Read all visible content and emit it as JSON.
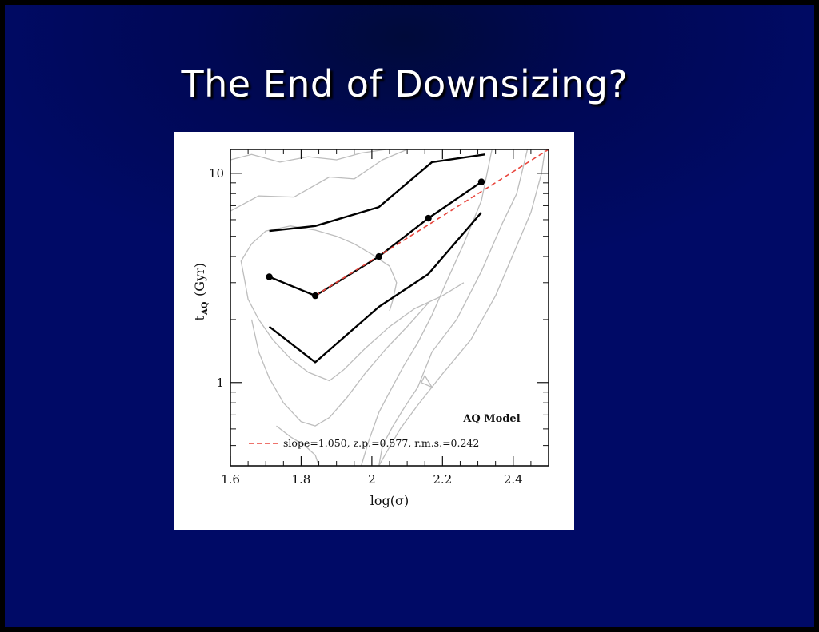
{
  "slide": {
    "title": "The End of Downsizing?"
  },
  "chart_data": {
    "type": "line",
    "x_scale": "linear",
    "y_scale": "log",
    "xlim": [
      1.6,
      2.5
    ],
    "ylim": [
      0.4,
      13
    ],
    "xlabel": "log(σ)",
    "ylabel_main": "t",
    "ylabel_sub": "AQ",
    "ylabel_unit": "(Gyr)",
    "x_ticks": [
      1.6,
      1.8,
      2,
      2.2,
      2.4
    ],
    "x_tick_labels": [
      "1.6",
      "1.8",
      "2",
      "2.2",
      "2.4"
    ],
    "y_ticks": [
      1,
      10
    ],
    "y_tick_labels": [
      "1",
      "10"
    ],
    "legend_position": "bottom-right",
    "annotation": "AQ Model",
    "fit_label": "slope=1.050, z.p.=0.577, r.m.s.=0.242",
    "colors": {
      "fit": "#e8453c",
      "contour": "#bdbdbd",
      "series": "#000000"
    },
    "series": [
      {
        "role": "median",
        "markers": true,
        "points": [
          [
            1.71,
            3.2
          ],
          [
            1.84,
            2.6
          ],
          [
            2.02,
            4.0
          ],
          [
            2.16,
            6.1
          ],
          [
            2.31,
            9.1
          ]
        ]
      },
      {
        "role": "upper",
        "markers": false,
        "points": [
          [
            1.71,
            5.3
          ],
          [
            1.84,
            5.6
          ],
          [
            2.02,
            6.9
          ],
          [
            2.17,
            11.3
          ],
          [
            2.32,
            12.3
          ]
        ]
      },
      {
        "role": "lower",
        "markers": false,
        "points": [
          [
            1.71,
            1.85
          ],
          [
            1.84,
            1.25
          ],
          [
            2.02,
            2.3
          ],
          [
            2.16,
            3.3
          ],
          [
            2.31,
            6.5
          ]
        ]
      },
      {
        "role": "fit",
        "dashed": true,
        "points": [
          [
            1.84,
            2.6
          ],
          [
            2.5,
            13.0
          ]
        ]
      }
    ],
    "contours": [
      [
        [
          1.6,
          11.6
        ],
        [
          1.66,
          12.3
        ],
        [
          1.74,
          11.3
        ],
        [
          1.82,
          12.0
        ],
        [
          1.9,
          11.6
        ],
        [
          1.97,
          12.5
        ],
        [
          2.04,
          13.0
        ]
      ],
      [
        [
          1.6,
          6.6
        ],
        [
          1.68,
          7.8
        ],
        [
          1.78,
          7.7
        ],
        [
          1.88,
          9.6
        ],
        [
          1.95,
          9.4
        ],
        [
          2.03,
          11.6
        ],
        [
          2.1,
          13.0
        ]
      ],
      [
        [
          2.44,
          13.0
        ],
        [
          2.43,
          11.0
        ],
        [
          2.41,
          8.0
        ],
        [
          2.37,
          5.8
        ],
        [
          2.31,
          3.4
        ],
        [
          2.24,
          2.0
        ],
        [
          2.17,
          1.4
        ],
        [
          2.13,
          0.95
        ],
        [
          2.09,
          0.75
        ],
        [
          2.06,
          0.62
        ],
        [
          2.03,
          0.5
        ],
        [
          2.02,
          0.4
        ]
      ],
      [
        [
          2.49,
          13.0
        ],
        [
          2.48,
          10.0
        ],
        [
          2.45,
          6.5
        ],
        [
          2.41,
          4.5
        ],
        [
          2.35,
          2.6
        ],
        [
          2.28,
          1.6
        ],
        [
          2.2,
          1.1
        ],
        [
          2.13,
          0.78
        ],
        [
          2.08,
          0.6
        ],
        [
          2.04,
          0.46
        ],
        [
          2.02,
          0.4
        ]
      ],
      [
        [
          1.97,
          0.4
        ],
        [
          1.99,
          0.52
        ],
        [
          2.02,
          0.72
        ],
        [
          2.05,
          0.9
        ],
        [
          2.09,
          1.2
        ],
        [
          2.13,
          1.55
        ],
        [
          2.17,
          2.1
        ],
        [
          2.21,
          3.0
        ],
        [
          2.26,
          4.6
        ],
        [
          2.31,
          7.4
        ],
        [
          2.34,
          13.0
        ]
      ],
      [
        [
          1.64,
          3.1
        ],
        [
          1.65,
          2.5
        ],
        [
          1.68,
          2.0
        ],
        [
          1.72,
          1.6
        ],
        [
          1.77,
          1.3
        ],
        [
          1.82,
          1.12
        ],
        [
          1.88,
          1.02
        ],
        [
          1.92,
          1.15
        ],
        [
          1.98,
          1.45
        ],
        [
          2.05,
          1.85
        ],
        [
          2.12,
          2.25
        ],
        [
          2.2,
          2.6
        ],
        [
          2.26,
          3.0
        ]
      ],
      [
        [
          1.64,
          3.1
        ],
        [
          1.63,
          3.8
        ],
        [
          1.66,
          4.6
        ],
        [
          1.7,
          5.3
        ],
        [
          1.77,
          5.6
        ],
        [
          1.84,
          5.35
        ],
        [
          1.9,
          5.0
        ],
        [
          1.95,
          4.6
        ],
        [
          2.0,
          4.1
        ],
        [
          2.05,
          3.6
        ],
        [
          2.07,
          3.0
        ],
        [
          2.06,
          2.5
        ],
        [
          2.05,
          2.2
        ]
      ],
      [
        [
          1.66,
          2.0
        ],
        [
          1.68,
          1.4
        ],
        [
          1.71,
          1.05
        ],
        [
          1.75,
          0.8
        ],
        [
          1.8,
          0.65
        ],
        [
          1.84,
          0.62
        ],
        [
          1.88,
          0.68
        ],
        [
          1.93,
          0.85
        ],
        [
          1.98,
          1.1
        ],
        [
          2.04,
          1.45
        ],
        [
          2.1,
          1.85
        ],
        [
          2.16,
          2.4
        ]
      ],
      [
        [
          1.73,
          0.62
        ],
        [
          1.77,
          0.55
        ],
        [
          1.81,
          0.5
        ],
        [
          1.84,
          0.45
        ],
        [
          1.85,
          0.4
        ]
      ],
      [
        [
          2.14,
          1.0
        ],
        [
          2.17,
          0.95
        ],
        [
          2.15,
          1.08
        ],
        [
          2.14,
          1.0
        ]
      ]
    ]
  }
}
